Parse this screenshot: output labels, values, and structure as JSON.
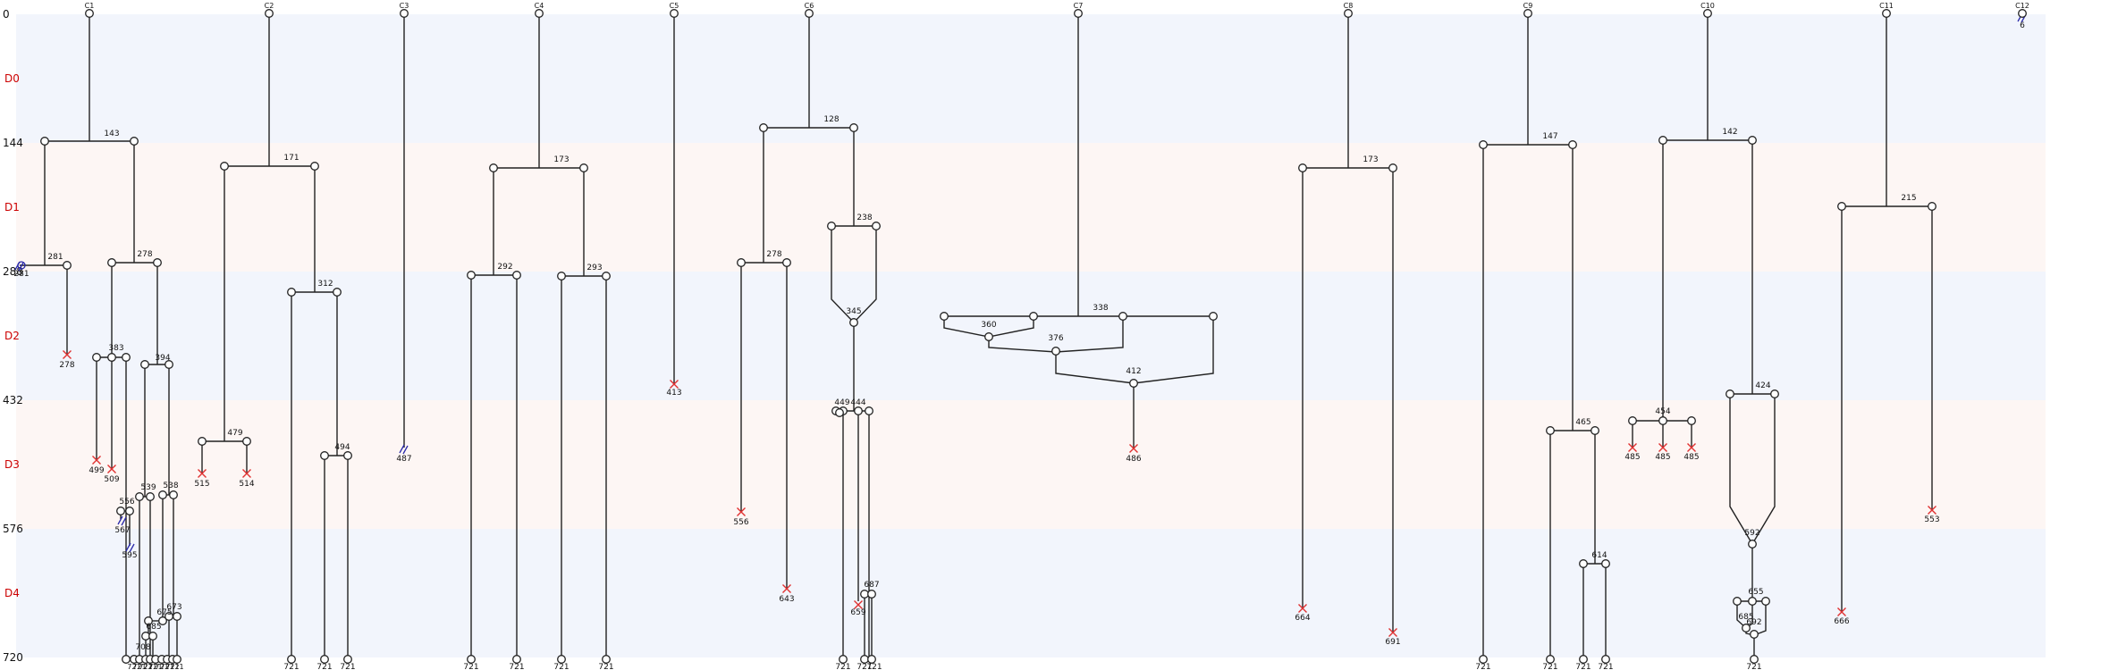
{
  "colors": {
    "band_even": "#f2f5fc",
    "band_odd": "#fdf6f4",
    "day_label": "#cc0000",
    "line": "#222222",
    "cross": "#e03030",
    "cut": "#2a2aaa",
    "node_fill": "#ffffff"
  },
  "y_axis": {
    "ticks": [
      "0",
      "144",
      "288",
      "432",
      "576",
      "720"
    ],
    "days": [
      "D0",
      "D1",
      "D2",
      "D3",
      "D4"
    ]
  },
  "columns": [
    "C1",
    "C2",
    "C3",
    "C4",
    "C5",
    "C6",
    "C7",
    "C8",
    "C9",
    "C10",
    "C11",
    "C12"
  ],
  "labels": {
    "C1": [
      "143",
      "281",
      "281",
      "278",
      "383",
      "383",
      "394",
      "499",
      "509",
      "539",
      "538",
      "556",
      "567",
      "595",
      "673",
      "675",
      "685",
      "708",
      "721"
    ],
    "C2": [
      "171",
      "312",
      "479",
      "515",
      "514",
      "494",
      "721",
      "721",
      "721"
    ],
    "C3": [
      "487"
    ],
    "C4": [
      "173",
      "292",
      "293",
      "721",
      "721",
      "721",
      "721"
    ],
    "C5": [
      "413"
    ],
    "C6": [
      "128",
      "238",
      "278",
      "345",
      "449",
      "444",
      "556",
      "643",
      "687",
      "659",
      "721",
      "721",
      "721"
    ],
    "C7": [
      "338",
      "360",
      "376",
      "412",
      "486"
    ],
    "C8": [
      "173",
      "664",
      "691"
    ],
    "C9": [
      "147",
      "465",
      "614",
      "721",
      "721",
      "721",
      "721"
    ],
    "C10": [
      "142",
      "454",
      "485",
      "485",
      "485",
      "424",
      "592",
      "655",
      "685",
      "692",
      "721"
    ],
    "C11": [
      "215",
      "666",
      "553"
    ],
    "C12": [
      "6"
    ]
  }
}
